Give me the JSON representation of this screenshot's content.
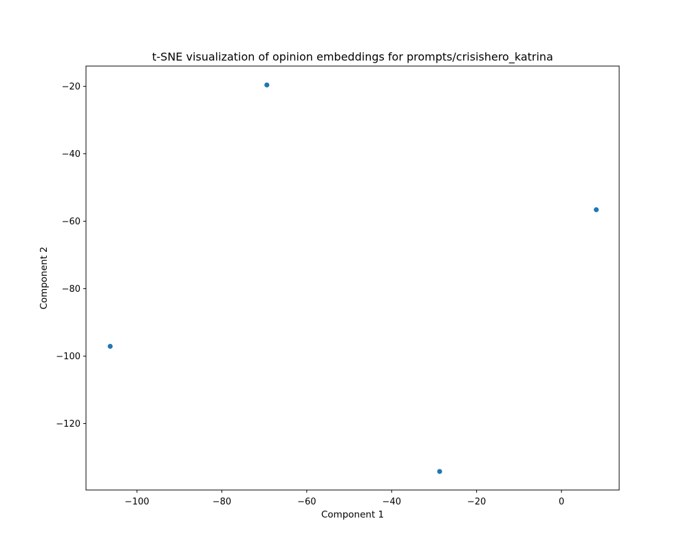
{
  "chart_data": {
    "type": "scatter",
    "title": "t-SNE visualization of opinion embeddings for prompts/crisishero_katrina",
    "xlabel": "Component 1",
    "ylabel": "Component 2",
    "xlim": [
      -112.0,
      13.6
    ],
    "ylim": [
      -139.7,
      -14.0
    ],
    "xticks": [
      -100,
      -80,
      -60,
      -40,
      -20,
      0
    ],
    "yticks": [
      -120,
      -100,
      -80,
      -60,
      -40,
      -20
    ],
    "grid": false,
    "marker_color": "#1f77b4",
    "points": [
      {
        "x": -69.4,
        "y": -19.6
      },
      {
        "x": -106.3,
        "y": -97.1
      },
      {
        "x": -28.7,
        "y": -134.2
      },
      {
        "x": 8.2,
        "y": -56.6
      }
    ]
  }
}
